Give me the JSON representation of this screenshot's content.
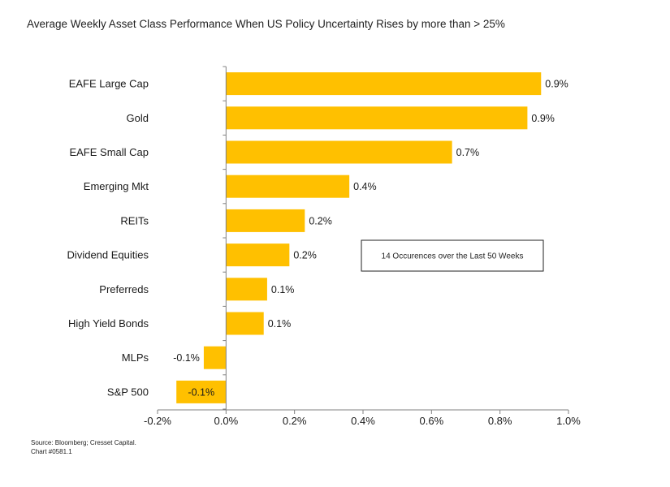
{
  "title": "Average Weekly Asset Class Performance When US Policy Uncertainty Rises by more than > 25%",
  "note": "14 Occurences over the Last 50 Weeks",
  "source": {
    "line1": "Source: Bloomberg; Cresset Capital.",
    "line2": "Chart #0581.1"
  },
  "colors": {
    "bar": "#FFC000",
    "axis": "#808080"
  },
  "chart_data": {
    "type": "bar",
    "orientation": "horizontal",
    "title": "Average Weekly Asset Class Performance When US Policy Uncertainty Rises by more than > 25%",
    "categories": [
      "EAFE Large Cap",
      "Gold",
      "EAFE Small Cap",
      "Emerging Mkt",
      "REITs",
      "Dividend Equities",
      "Preferreds",
      "High Yield Bonds",
      "MLPs",
      "S&P 500"
    ],
    "values": [
      0.92,
      0.88,
      0.66,
      0.36,
      0.23,
      0.185,
      0.12,
      0.11,
      -0.065,
      -0.145
    ],
    "value_labels": [
      "0.9%",
      "0.9%",
      "0.7%",
      "0.4%",
      "0.2%",
      "0.2%",
      "0.1%",
      "0.1%",
      "-0.1%",
      "-0.1%"
    ],
    "xlim": [
      -0.2,
      1.0
    ],
    "xticks": [
      -0.2,
      0.0,
      0.2,
      0.4,
      0.6,
      0.8,
      1.0
    ],
    "xtick_labels": [
      "-0.2%",
      "0.0%",
      "0.2%",
      "0.4%",
      "0.6%",
      "0.8%",
      "1.0%"
    ],
    "xlabel": "",
    "ylabel": "",
    "grid": false,
    "legend": "none"
  }
}
